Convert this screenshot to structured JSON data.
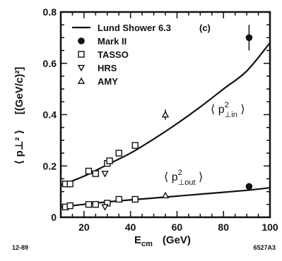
{
  "chart_data": {
    "type": "scatter",
    "panel_label": "(c)",
    "xlabel": "E",
    "xlabel_sub": "cm",
    "xunit": "(GeV)",
    "ylabel_bracket": "⟨ p⊥² ⟩",
    "yunit": "[(GeV/c)²]",
    "xlim": [
      10,
      100
    ],
    "ylim": [
      0,
      0.8
    ],
    "xticks": [
      20,
      40,
      60,
      80,
      100
    ],
    "yticks": [
      0,
      0.2,
      0.4,
      0.6,
      0.8
    ],
    "ytick_labels": [
      "0",
      "0.2",
      "0.4",
      "0.6",
      "0.8"
    ],
    "legend_position": "top-left",
    "legend": [
      "Lund Shower 6.3",
      "Mark II",
      "TASSO",
      "HRS",
      "AMY"
    ],
    "curve_labels": {
      "in": {
        "base": "p",
        "sub": "⊥in",
        "sup": "2"
      },
      "out": {
        "base": "p",
        "sub": "⊥out",
        "sup": "2"
      }
    },
    "series": [
      {
        "name": "Lund Shower 6.3",
        "kind": "line",
        "curves": [
          {
            "label": "in",
            "x": [
              10,
              20,
              30,
              40,
              50,
              60,
              70,
              80,
              90,
              100
            ],
            "y": [
              0.125,
              0.16,
              0.205,
              0.25,
              0.305,
              0.365,
              0.43,
              0.5,
              0.57,
              0.68
            ]
          },
          {
            "label": "out",
            "x": [
              10,
              30,
              50,
              70,
              90,
              100
            ],
            "y": [
              0.04,
              0.06,
              0.075,
              0.09,
              0.105,
              0.115
            ]
          }
        ]
      },
      {
        "name": "Mark II",
        "marker": "circle",
        "points": [
          {
            "x": 91,
            "y": 0.7,
            "err": 0.05
          },
          {
            "x": 91,
            "y": 0.12,
            "err": 0
          }
        ]
      },
      {
        "name": "TASSO",
        "marker": "square",
        "points": [
          {
            "x": 12,
            "y": 0.13
          },
          {
            "x": 14,
            "y": 0.13
          },
          {
            "x": 22,
            "y": 0.18
          },
          {
            "x": 25,
            "y": 0.17
          },
          {
            "x": 30,
            "y": 0.21
          },
          {
            "x": 31,
            "y": 0.22
          },
          {
            "x": 35,
            "y": 0.25
          },
          {
            "x": 42,
            "y": 0.28
          },
          {
            "x": 12,
            "y": 0.04
          },
          {
            "x": 14,
            "y": 0.045
          },
          {
            "x": 22,
            "y": 0.05
          },
          {
            "x": 25,
            "y": 0.05
          },
          {
            "x": 30,
            "y": 0.055
          },
          {
            "x": 35,
            "y": 0.07
          },
          {
            "x": 42,
            "y": 0.07
          }
        ]
      },
      {
        "name": "HRS",
        "marker": "triangle-down",
        "points": [
          {
            "x": 29,
            "y": 0.17
          },
          {
            "x": 29,
            "y": 0.04
          }
        ]
      },
      {
        "name": "AMY",
        "marker": "triangle-up",
        "points": [
          {
            "x": 55,
            "y": 0.4,
            "err": 0.02
          },
          {
            "x": 55,
            "y": 0.085,
            "err": 0
          }
        ]
      }
    ]
  },
  "footer": {
    "left_code": "12-89",
    "right_code": "6527A3"
  }
}
